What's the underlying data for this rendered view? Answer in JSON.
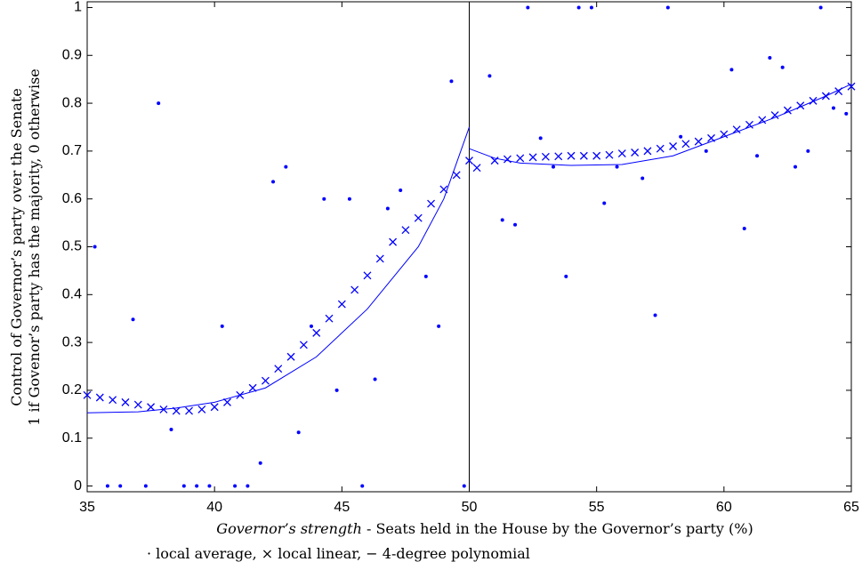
{
  "chart_data": {
    "type": "scatter",
    "xlabel": {
      "emphasis": "Governor’s strength",
      "rest": " - Seats held in the House by the Governor’s party (%)"
    },
    "legend_text": "· local average, × local linear, − 4-degree polynomial",
    "ylabel": [
      "Control of Governor’s party over the Senate",
      "1 if Govenor’s party has the majority, 0 otherwise"
    ],
    "xlim": [
      35,
      65
    ],
    "ylim": [
      -0.012,
      1.012
    ],
    "xticks": [
      35,
      40,
      45,
      50,
      55,
      60,
      65
    ],
    "yticks": [
      0,
      0.1,
      0.2,
      0.3,
      0.4,
      0.5,
      0.6,
      0.7,
      0.8,
      0.9,
      1
    ],
    "cutoff": 50,
    "series": [
      {
        "marker": "dot",
        "color": "#0000ff",
        "x": [
          35.3,
          35.8,
          36.3,
          36.8,
          37.3,
          37.8,
          38.3,
          38.8,
          39.3,
          39.8,
          40.3,
          40.8,
          41.3,
          41.8,
          42.3,
          42.8,
          43.3,
          43.8,
          44.3,
          44.8,
          45.3,
          45.8,
          46.3,
          46.8,
          47.3,
          48.3,
          48.8,
          49.3,
          49.8,
          50.8,
          51.3,
          51.8,
          52.3,
          52.8,
          53.3,
          53.8,
          54.3,
          54.8,
          55.3,
          55.8,
          56.8,
          57.3,
          57.8,
          58.3,
          59.3,
          60.3,
          60.8,
          61.3,
          61.8,
          62.3,
          62.8,
          63.3,
          63.8,
          64.3,
          64.8
        ],
        "y": [
          0.5,
          0,
          0,
          0.348,
          0,
          0.8,
          0.118,
          0,
          0,
          0,
          0.334,
          0,
          0,
          0.048,
          0.636,
          0.667,
          0.112,
          0.334,
          0.6,
          0.2,
          0.6,
          0,
          0.223,
          0.58,
          0.618,
          0.438,
          0.334,
          0.846,
          0,
          0.857,
          0.556,
          0.546,
          1,
          0.727,
          0.667,
          0.438,
          1,
          1,
          0.591,
          0.667,
          0.643,
          0.357,
          1,
          0.73,
          0.7,
          0.87,
          0.538,
          0.69,
          0.895,
          0.875,
          0.667,
          0.7,
          1,
          0.79,
          0.778
        ]
      },
      {
        "marker": "cross",
        "color": "#0000ff",
        "x": [
          35,
          35.5,
          36,
          36.5,
          37,
          37.5,
          38,
          38.5,
          39,
          39.5,
          40,
          40.5,
          41,
          41.5,
          42,
          42.5,
          43,
          43.5,
          44,
          44.5,
          45,
          45.5,
          46,
          46.5,
          47,
          47.5,
          48,
          48.5,
          49,
          49.5,
          50,
          50.3,
          51,
          51.5,
          52,
          52.5,
          53,
          53.5,
          54,
          54.5,
          55,
          55.5,
          56,
          56.5,
          57,
          57.5,
          58,
          58.5,
          59,
          59.5,
          60,
          60.5,
          61,
          61.5,
          62,
          62.5,
          63,
          63.5,
          64,
          64.5,
          65
        ],
        "y": [
          0.19,
          0.185,
          0.18,
          0.175,
          0.17,
          0.165,
          0.16,
          0.157,
          0.157,
          0.16,
          0.165,
          0.175,
          0.19,
          0.205,
          0.22,
          0.245,
          0.27,
          0.295,
          0.32,
          0.35,
          0.38,
          0.41,
          0.44,
          0.475,
          0.51,
          0.535,
          0.56,
          0.59,
          0.62,
          0.65,
          0.68,
          0.665,
          0.68,
          0.683,
          0.685,
          0.687,
          0.688,
          0.689,
          0.69,
          0.69,
          0.69,
          0.692,
          0.695,
          0.697,
          0.7,
          0.705,
          0.71,
          0.715,
          0.72,
          0.727,
          0.735,
          0.745,
          0.755,
          0.765,
          0.775,
          0.785,
          0.795,
          0.805,
          0.815,
          0.825,
          0.835
        ]
      },
      {
        "marker": "line",
        "color": "#0000ff",
        "x": [
          35,
          37,
          38.5,
          40,
          42,
          44,
          46,
          48,
          49,
          50
        ],
        "y": [
          0.153,
          0.155,
          0.163,
          0.175,
          0.205,
          0.27,
          0.37,
          0.5,
          0.6,
          0.75
        ]
      },
      {
        "marker": "line",
        "color": "#0000ff",
        "x": [
          50,
          51,
          52,
          54,
          56,
          58,
          60,
          62,
          64,
          65
        ],
        "y": [
          0.705,
          0.685,
          0.675,
          0.67,
          0.672,
          0.69,
          0.73,
          0.77,
          0.815,
          0.84
        ]
      }
    ]
  }
}
